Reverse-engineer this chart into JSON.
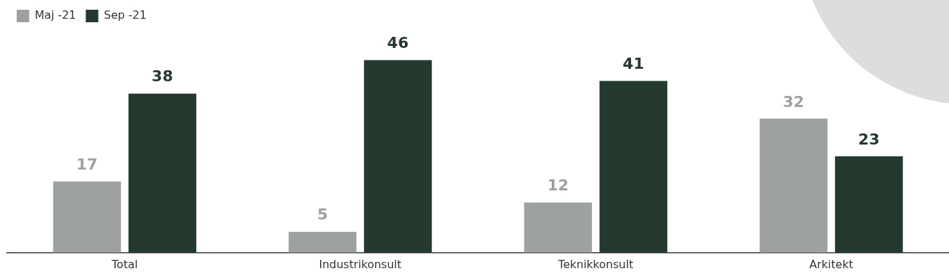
{
  "chart_data": {
    "type": "bar",
    "categories": [
      "Total",
      "Industrikonsult",
      "Teknikkonsult",
      "Arkitekt"
    ],
    "series": [
      {
        "name": "Maj -21",
        "color": "#9da29f",
        "values": [
          17,
          5,
          12,
          32
        ]
      },
      {
        "name": "Sep -21",
        "color": "#243a2e",
        "values": [
          38,
          46,
          41,
          23
        ]
      }
    ],
    "data_labels": true,
    "legend": "top left",
    "grid": false
  }
}
